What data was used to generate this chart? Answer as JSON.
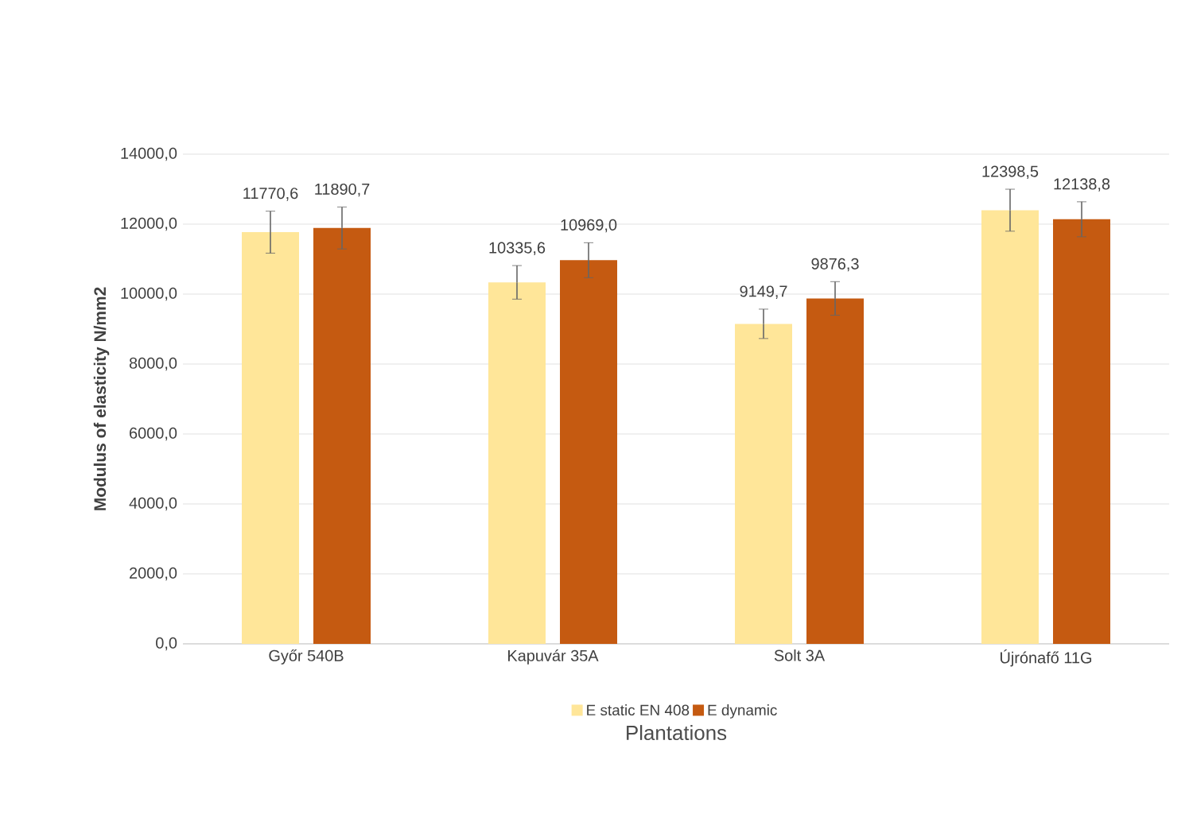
{
  "chart_data": {
    "type": "bar",
    "xlabel": "Plantations",
    "ylabel": "Modulus of elasticity N/mm2",
    "categories": [
      "Győr 540B",
      "Kapuvár 35A",
      "Solt 3A",
      "Újrónafő 11G"
    ],
    "series": [
      {
        "name": "E static EN 408",
        "color": "#ffe699",
        "values": [
          11770.6,
          10335.6,
          9149.7,
          12398.5
        ],
        "errors": [
          600,
          480,
          420,
          600
        ],
        "value_labels": [
          "11770,6",
          "10335,6",
          "9149,7",
          "12398,5"
        ]
      },
      {
        "name": "E dynamic",
        "color": "#c55a11",
        "values": [
          11890.7,
          10969.0,
          9876.3,
          12138.8
        ],
        "errors": [
          600,
          500,
          480,
          500
        ],
        "value_labels": [
          "11890,7",
          "10969,0",
          "9876,3",
          "12138,8"
        ]
      }
    ],
    "ylim": [
      0,
      14000
    ],
    "yticks": [
      {
        "value": 0,
        "label": "0,0"
      },
      {
        "value": 2000,
        "label": "2000,0"
      },
      {
        "value": 4000,
        "label": "4000,0"
      },
      {
        "value": 6000,
        "label": "6000,0"
      },
      {
        "value": 8000,
        "label": "8000,0"
      },
      {
        "value": 10000,
        "label": "10000,0"
      },
      {
        "value": 12000,
        "label": "12000,0"
      },
      {
        "value": 14000,
        "label": "14000,0"
      }
    ],
    "grid": "y",
    "legend": "bottom"
  }
}
